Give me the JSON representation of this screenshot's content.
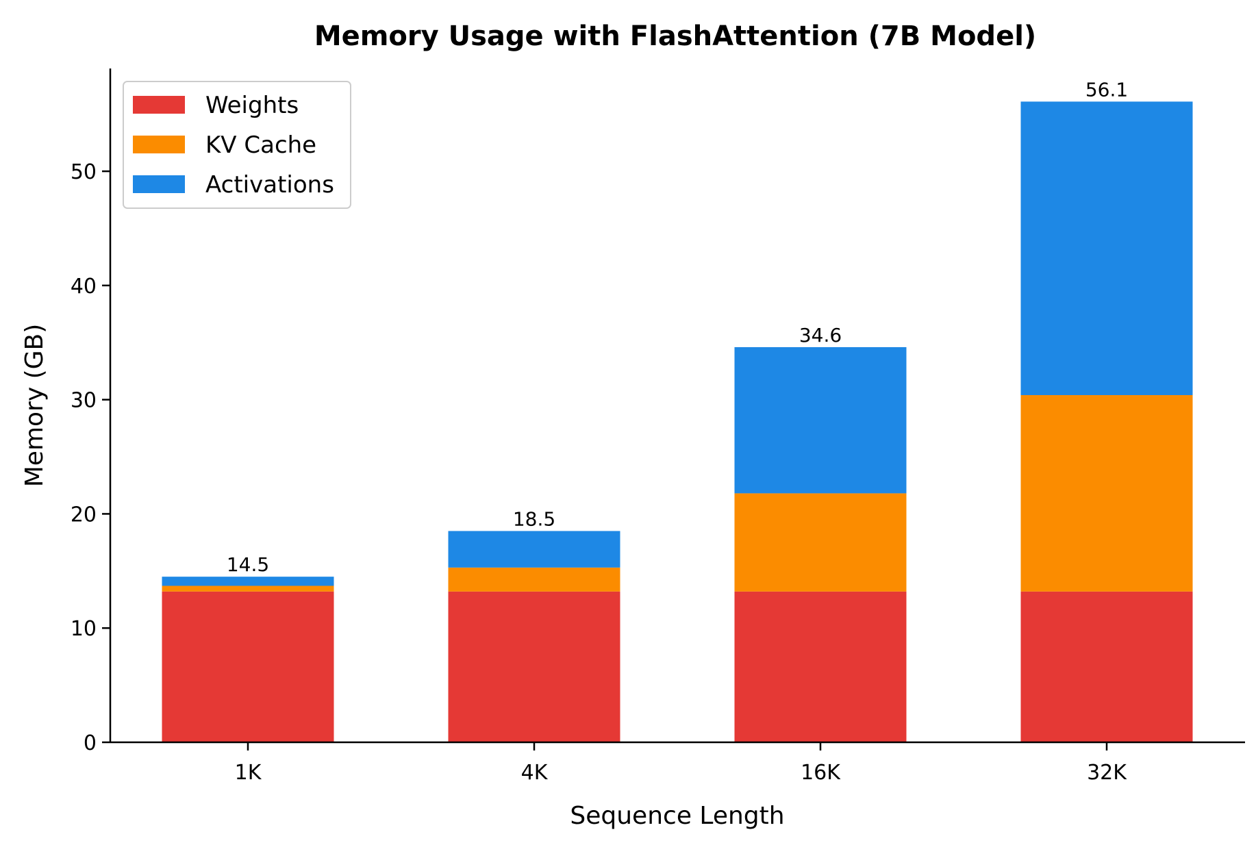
{
  "chart_data": {
    "type": "bar",
    "stacked": true,
    "title": "Memory Usage with FlashAttention (7B Model)",
    "xlabel": "Sequence Length",
    "ylabel": "Memory (GB)",
    "categories": [
      "1K",
      "4K",
      "16K",
      "32K"
    ],
    "series": [
      {
        "name": "Weights",
        "color": "#e53935",
        "values": [
          13.2,
          13.2,
          13.2,
          13.2
        ]
      },
      {
        "name": "KV Cache",
        "color": "#fb8c00",
        "values": [
          0.5,
          2.1,
          8.6,
          17.2
        ]
      },
      {
        "name": "Activations",
        "color": "#1e88e5",
        "values": [
          0.8,
          3.2,
          12.8,
          25.7
        ]
      }
    ],
    "totals": [
      "14.5",
      "18.5",
      "34.6",
      "56.1"
    ],
    "ylim": [
      0,
      59
    ],
    "yticks": [
      0,
      10,
      20,
      30,
      40,
      50
    ],
    "grid": false,
    "legend_position": "top-left"
  }
}
